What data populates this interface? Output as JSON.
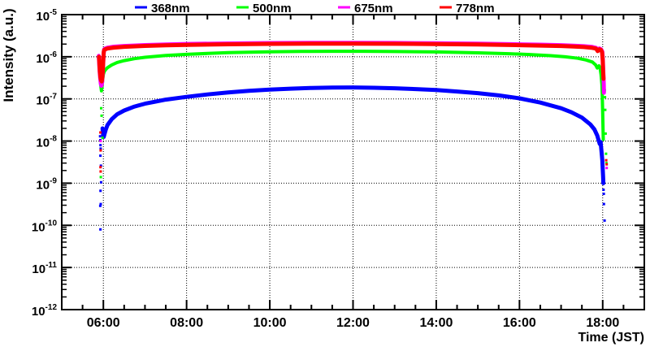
{
  "figure": {
    "background": "#ffffff",
    "frame_color": "#000000",
    "grid_style": "dotted"
  },
  "chart_data": {
    "type": "scatter",
    "title": "",
    "xlabel": "Time (JST)",
    "ylabel": "Intensity (a.u.)",
    "x_axis": {
      "min_hour": 5,
      "max_hour": 19,
      "major_ticks": [
        {
          "hour": 6,
          "label": "06:00"
        },
        {
          "hour": 8,
          "label": "08:00"
        },
        {
          "hour": 10,
          "label": "10:00"
        },
        {
          "hour": 12,
          "label": "12:00"
        },
        {
          "hour": 14,
          "label": "14:00"
        },
        {
          "hour": 16,
          "label": "16:00"
        },
        {
          "hour": 18,
          "label": "18:00"
        }
      ],
      "minor_tick_every_hours": 0.5,
      "grid": true
    },
    "y_axis": {
      "scale": "log",
      "max_exp": -5,
      "min_exp": -12,
      "tick_label_base": "10",
      "tick_exponents": [
        "-5",
        "-6",
        "-7",
        "-8",
        "-9",
        "-10",
        "-11",
        "-12"
      ],
      "grid": true
    },
    "legend": {
      "position": "top",
      "entries": [
        {
          "label": "368nm",
          "color": "#0000ff"
        },
        {
          "label": "500nm",
          "color": "#00ff00"
        },
        {
          "label": "675nm",
          "color": "#ff00ff"
        },
        {
          "label": "778nm",
          "color": "#ff0000"
        }
      ]
    },
    "series": [
      {
        "name": "368nm",
        "color": "#0000ff",
        "curve": [
          [
            5.98,
            2e-08
          ],
          [
            5.99,
            1.55e-08
          ],
          [
            6.0,
            1.3e-08
          ],
          [
            6.01,
            1.25e-08
          ],
          [
            6.03,
            1.5e-08
          ],
          [
            6.06,
            1.9e-08
          ],
          [
            6.1,
            2.4e-08
          ],
          [
            6.2,
            3.3e-08
          ],
          [
            6.33,
            4.3e-08
          ],
          [
            6.5,
            5.3e-08
          ],
          [
            6.75,
            6.6e-08
          ],
          [
            7.0,
            7.7e-08
          ],
          [
            7.5,
            9.6e-08
          ],
          [
            8.0,
            1.12e-07
          ],
          [
            8.5,
            1.28e-07
          ],
          [
            9.0,
            1.43e-07
          ],
          [
            9.5,
            1.56e-07
          ],
          [
            10.0,
            1.66e-07
          ],
          [
            10.5,
            1.75e-07
          ],
          [
            11.0,
            1.82e-07
          ],
          [
            11.5,
            1.86e-07
          ],
          [
            12.0,
            1.87e-07
          ],
          [
            12.5,
            1.84e-07
          ],
          [
            13.0,
            1.79e-07
          ],
          [
            13.5,
            1.71e-07
          ],
          [
            14.0,
            1.62e-07
          ],
          [
            14.5,
            1.5e-07
          ],
          [
            15.0,
            1.37e-07
          ],
          [
            15.5,
            1.21e-07
          ],
          [
            16.0,
            1.03e-07
          ],
          [
            16.5,
            8.2e-08
          ],
          [
            17.0,
            6e-08
          ],
          [
            17.25,
            4.8e-08
          ],
          [
            17.5,
            3.6e-08
          ],
          [
            17.7,
            2.5e-08
          ],
          [
            17.8,
            1.9e-08
          ],
          [
            17.87,
            1.35e-08
          ],
          [
            17.9,
            1.05e-08
          ],
          [
            17.93,
            8.5e-09
          ],
          [
            17.95,
            9.5e-09
          ],
          [
            17.97,
            6e-09
          ],
          [
            17.99,
            3.5e-09
          ],
          [
            18.0,
            2.2e-09
          ],
          [
            18.01,
            1.4e-09
          ],
          [
            18.015,
            1e-09
          ]
        ],
        "scatter": [
          [
            5.921,
            1.3e-08
          ],
          [
            5.928,
            1.05e-08
          ],
          [
            5.932,
            8e-09
          ],
          [
            5.936,
            6.6e-09
          ],
          [
            5.93,
            4.5e-09
          ],
          [
            5.941,
            2.6e-09
          ],
          [
            5.945,
            1.05e-09
          ],
          [
            5.931,
            6.6e-10
          ],
          [
            5.937,
            3.2e-10
          ],
          [
            5.926,
            2.9e-10
          ],
          [
            5.929,
            8e-11
          ],
          [
            18.02,
            7e-10
          ],
          [
            18.025,
            5.6e-10
          ],
          [
            18.03,
            3.2e-10
          ],
          [
            18.045,
            1.3e-10
          ]
        ]
      },
      {
        "name": "500nm",
        "color": "#00ff00",
        "curve": [
          [
            5.895,
            9.5e-07
          ],
          [
            5.905,
            6.5e-07
          ],
          [
            5.915,
            4.2e-07
          ],
          [
            5.925,
            2.8e-07
          ],
          [
            5.94,
            2e-07
          ],
          [
            5.955,
            1.55e-07
          ],
          [
            5.97,
            2e-07
          ],
          [
            5.985,
            2.9e-07
          ],
          [
            6.0,
            3.8e-07
          ],
          [
            6.02,
            4.4e-07
          ],
          [
            6.05,
            4.9e-07
          ],
          [
            6.1,
            5.5e-07
          ],
          [
            6.2,
            6.4e-07
          ],
          [
            6.33,
            7.3e-07
          ],
          [
            6.5,
            8.1e-07
          ],
          [
            6.75,
            9e-07
          ],
          [
            7.0,
            9.7e-07
          ],
          [
            7.5,
            1.07e-06
          ],
          [
            8.0,
            1.14e-06
          ],
          [
            8.5,
            1.2e-06
          ],
          [
            9.0,
            1.25e-06
          ],
          [
            9.5,
            1.28e-06
          ],
          [
            10.0,
            1.31e-06
          ],
          [
            10.75,
            1.34e-06
          ],
          [
            11.5,
            1.35e-06
          ],
          [
            12.25,
            1.35e-06
          ],
          [
            13.0,
            1.33e-06
          ],
          [
            14.0,
            1.3e-06
          ],
          [
            15.0,
            1.24e-06
          ],
          [
            15.75,
            1.18e-06
          ],
          [
            16.25,
            1.13e-06
          ],
          [
            16.75,
            1.06e-06
          ],
          [
            17.1,
            1e-06
          ],
          [
            17.4,
            9.2e-07
          ],
          [
            17.6,
            8.4e-07
          ],
          [
            17.75,
            7.5e-07
          ],
          [
            17.83,
            6.4e-07
          ],
          [
            17.87,
            5.4e-07
          ],
          [
            17.91,
            6.1e-07
          ],
          [
            17.94,
            5.2e-07
          ],
          [
            17.96,
            3.8e-07
          ],
          [
            17.98,
            2.2e-07
          ],
          [
            17.99,
            1.1e-07
          ],
          [
            18.0,
            4.5e-08
          ],
          [
            18.008,
            1.9e-08
          ],
          [
            18.013,
            1.1e-08
          ]
        ],
        "scatter": [
          [
            5.947,
            6e-08
          ],
          [
            5.956,
            4e-08
          ],
          [
            5.98,
            1.2e-08
          ],
          [
            5.94,
            1.4e-09
          ],
          [
            18.05,
            1.6e-07
          ],
          [
            18.055,
            1.1e-07
          ],
          [
            18.06,
            5.5e-08
          ],
          [
            18.07,
            1.5e-08
          ],
          [
            18.08,
            5e-09
          ],
          [
            18.09,
            3e-09
          ]
        ]
      },
      {
        "name": "675nm",
        "color": "#ff00ff",
        "curve": [
          [
            5.89,
            1.05e-06
          ],
          [
            5.9,
            7e-07
          ],
          [
            5.91,
            4.6e-07
          ],
          [
            5.925,
            3e-07
          ],
          [
            5.94,
            2.3e-07
          ],
          [
            5.955,
            2.05e-07
          ],
          [
            5.97,
            2.5e-07
          ],
          [
            5.985,
            4.2e-07
          ],
          [
            5.995,
            7e-07
          ],
          [
            6.005,
            1.15e-06
          ],
          [
            6.02,
            1.5e-06
          ],
          [
            6.05,
            1.58e-06
          ],
          [
            6.1,
            1.64e-06
          ],
          [
            6.25,
            1.73e-06
          ],
          [
            6.5,
            1.8e-06
          ],
          [
            7.0,
            1.89e-06
          ],
          [
            7.5,
            1.96e-06
          ],
          [
            8.0,
            2.01e-06
          ],
          [
            9.0,
            2.07e-06
          ],
          [
            10.0,
            2.11e-06
          ],
          [
            11.0,
            2.13e-06
          ],
          [
            12.0,
            2.14e-06
          ],
          [
            13.0,
            2.12e-06
          ],
          [
            14.0,
            2.09e-06
          ],
          [
            15.0,
            2.04e-06
          ],
          [
            16.0,
            1.97e-06
          ],
          [
            16.5,
            1.93e-06
          ],
          [
            17.0,
            1.88e-06
          ],
          [
            17.3,
            1.83e-06
          ],
          [
            17.55,
            1.78e-06
          ],
          [
            17.75,
            1.71e-06
          ],
          [
            17.84,
            1.63e-06
          ],
          [
            17.88,
            1.42e-06
          ],
          [
            17.92,
            1.57e-06
          ],
          [
            17.96,
            1.51e-06
          ],
          [
            17.99,
            1.32e-06
          ],
          [
            18.005,
            8e-07
          ],
          [
            18.015,
            4e-07
          ],
          [
            18.025,
            2.2e-07
          ],
          [
            18.03,
            1.4e-07
          ]
        ],
        "scatter": [
          [
            5.935,
            1e-08
          ],
          [
            18.095,
            2.3e-09
          ]
        ]
      },
      {
        "name": "778nm",
        "color": "#ff0000",
        "curve": [
          [
            5.895,
            1e-06
          ],
          [
            5.905,
            6.8e-07
          ],
          [
            5.915,
            4.4e-07
          ],
          [
            5.93,
            3.2e-07
          ],
          [
            5.945,
            2.75e-07
          ],
          [
            5.96,
            2.6e-07
          ],
          [
            5.975,
            3.1e-07
          ],
          [
            5.99,
            5.5e-07
          ],
          [
            6.0,
            9e-07
          ],
          [
            6.01,
            1.3e-06
          ],
          [
            6.02,
            1.44e-06
          ],
          [
            6.05,
            1.51e-06
          ],
          [
            6.1,
            1.57e-06
          ],
          [
            6.25,
            1.65e-06
          ],
          [
            6.5,
            1.72e-06
          ],
          [
            7.0,
            1.81e-06
          ],
          [
            7.5,
            1.87e-06
          ],
          [
            8.0,
            1.92e-06
          ],
          [
            9.0,
            1.98e-06
          ],
          [
            10.0,
            2.02e-06
          ],
          [
            11.0,
            2.04e-06
          ],
          [
            12.0,
            2.05e-06
          ],
          [
            13.0,
            2.03e-06
          ],
          [
            14.0,
            2e-06
          ],
          [
            15.0,
            1.95e-06
          ],
          [
            16.0,
            1.88e-06
          ],
          [
            16.5,
            1.84e-06
          ],
          [
            17.0,
            1.8e-06
          ],
          [
            17.3,
            1.75e-06
          ],
          [
            17.55,
            1.7e-06
          ],
          [
            17.75,
            1.63e-06
          ],
          [
            17.84,
            1.56e-06
          ],
          [
            17.88,
            1.36e-06
          ],
          [
            17.92,
            1.5e-06
          ],
          [
            17.96,
            1.45e-06
          ],
          [
            17.985,
            1.28e-06
          ],
          [
            18.0,
            8.5e-07
          ],
          [
            18.01,
            4.5e-07
          ],
          [
            18.02,
            3e-07
          ]
        ],
        "scatter": [
          [
            5.93,
            1.6e-08
          ],
          [
            5.935,
            6e-09
          ],
          [
            5.932,
            2.4e-09
          ],
          [
            5.936,
            1.9e-09
          ],
          [
            18.085,
            3.5e-09
          ],
          [
            18.095,
            2.8e-09
          ]
        ]
      }
    ]
  }
}
